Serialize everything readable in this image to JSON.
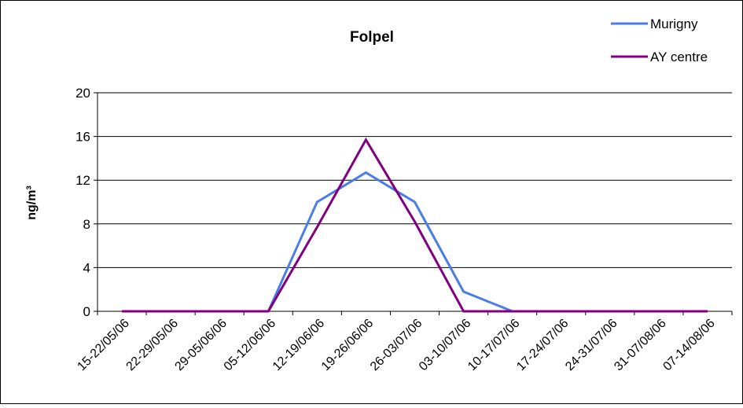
{
  "chart_data": {
    "type": "line",
    "title": "Folpel",
    "xlabel": "",
    "ylabel": "ng/m³",
    "ylim": [
      0,
      20
    ],
    "yticks": [
      0,
      4,
      8,
      12,
      16,
      20
    ],
    "grid": true,
    "legend_position": "top-right",
    "categories": [
      "15-22/05/06",
      "22-29/05/06",
      "29-05/06/06",
      "05-12/06/06",
      "12-19/06/06",
      "19-26/06/06",
      "26-03/07/06",
      "03-10/07/06",
      "10-17/07/06",
      "17-24/07/06",
      "24-31/07/06",
      "31-07/08/06",
      "07-14/08/06"
    ],
    "series": [
      {
        "name": "Murigny",
        "color": "#4a7de8",
        "values": [
          0,
          0,
          0,
          0,
          10,
          12.7,
          10,
          1.8,
          0,
          0,
          0,
          0,
          0
        ]
      },
      {
        "name": "AY centre",
        "color": "#800080",
        "values": [
          0,
          0,
          0,
          0,
          7.7,
          15.7,
          8.2,
          0,
          0,
          0,
          0,
          0,
          0
        ]
      }
    ]
  }
}
